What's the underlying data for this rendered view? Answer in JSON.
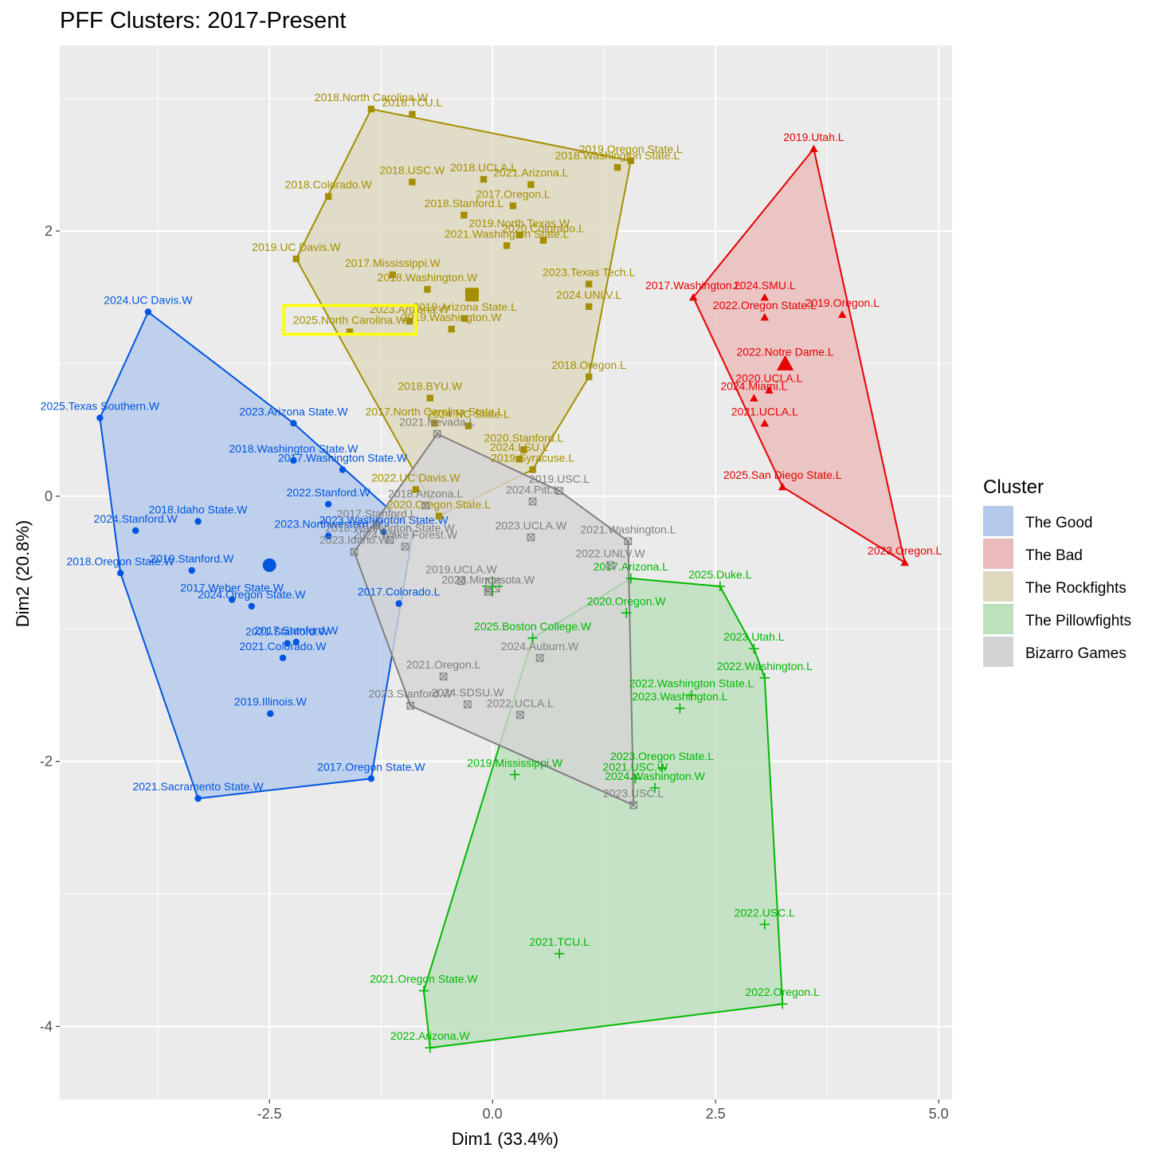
{
  "chart_data": {
    "type": "scatter",
    "title": "PFF Clusters: 2017-Present",
    "xlabel": "Dim1 (33.4%)",
    "ylabel": "Dim2 (20.8%)",
    "xlim": [
      -4.85,
      5.15
    ],
    "ylim": [
      -4.55,
      3.4
    ],
    "xticks": [
      -2.5,
      0.0,
      2.5,
      5.0
    ],
    "xtick_labels": [
      "-2.5",
      "0.0",
      "2.5",
      "5.0"
    ],
    "yticks": [
      -4,
      -2,
      0,
      2
    ],
    "ytick_labels": [
      "-4",
      "-2",
      "0",
      "2"
    ],
    "grid": true,
    "legend": {
      "title": "Cluster",
      "position": "right"
    },
    "highlight": {
      "label": "2025.North Carolina.W",
      "color": "#ffff00"
    },
    "series": [
      {
        "name": "The Good",
        "color": "#0055e0",
        "fill": "#b4c9ec",
        "shape": "circle",
        "centroid": {
          "x": -2.5,
          "y": -0.52
        },
        "hull": [
          [
            -4.4,
            0.59
          ],
          [
            -3.86,
            1.39
          ],
          [
            -2.23,
            0.55
          ],
          [
            -0.89,
            -0.26
          ],
          [
            -1.36,
            -2.13
          ],
          [
            -3.3,
            -2.28
          ],
          [
            -4.17,
            -0.58
          ]
        ],
        "points": [
          {
            "label": "2024.UC Davis.W",
            "x": -3.86,
            "y": 1.39
          },
          {
            "label": "2025.Texas Southern.W",
            "x": -4.4,
            "y": 0.59
          },
          {
            "label": "2023.Arizona State.W",
            "x": -2.23,
            "y": 0.55
          },
          {
            "label": "2017.Washington State.W",
            "x": -1.68,
            "y": 0.2
          },
          {
            "label": "2018.Washington State.W",
            "x": -2.23,
            "y": 0.27
          },
          {
            "label": "2022.Stanford.W",
            "x": -1.84,
            "y": -0.06
          },
          {
            "label": "2018.Idaho State.W",
            "x": -3.3,
            "y": -0.19
          },
          {
            "label": "2024.Stanford.W",
            "x": -4.0,
            "y": -0.26
          },
          {
            "label": "2023.Northwestern.W",
            "x": -1.84,
            "y": -0.3
          },
          {
            "label": "2023.Washington State.W",
            "x": -1.22,
            "y": -0.27
          },
          {
            "label": "2018.Oregon State.W",
            "x": -4.17,
            "y": -0.58
          },
          {
            "label": "2019.Stanford.W",
            "x": -3.37,
            "y": -0.56
          },
          {
            "label": "2024.Oregon State.W",
            "x": -2.7,
            "y": -0.83
          },
          {
            "label": "2017.Weber State.W",
            "x": -2.92,
            "y": -0.78
          },
          {
            "label": "2017.Colorado.L",
            "x": -1.05,
            "y": -0.81
          },
          {
            "label": "2017.Stanford.W",
            "x": -2.2,
            "y": -1.1
          },
          {
            "label": "2021.Stanford.W",
            "x": -2.3,
            "y": -1.11
          },
          {
            "label": "2021.Colorado.W",
            "x": -2.35,
            "y": -1.22
          },
          {
            "label": "2019.Illinois.W",
            "x": -2.49,
            "y": -1.64
          },
          {
            "label": "2017.Oregon State.W",
            "x": -1.36,
            "y": -2.13
          },
          {
            "label": "2021.Sacramento State.W",
            "x": -3.3,
            "y": -2.28
          }
        ]
      },
      {
        "name": "The Bad",
        "color": "#e60000",
        "fill": "#ebbaba",
        "shape": "triangle",
        "centroid": {
          "x": 3.28,
          "y": 1.0
        },
        "hull": [
          [
            2.25,
            1.5
          ],
          [
            3.6,
            2.62
          ],
          [
            4.62,
            -0.5
          ],
          [
            3.25,
            0.07
          ]
        ],
        "points": [
          {
            "label": "2019.Utah.L",
            "x": 3.6,
            "y": 2.62
          },
          {
            "label": "2017.Washington.L",
            "x": 2.25,
            "y": 1.5
          },
          {
            "label": "2024.SMU.L",
            "x": 3.05,
            "y": 1.5
          },
          {
            "label": "2022.Oregon State.L",
            "x": 3.05,
            "y": 1.35
          },
          {
            "label": "2019.Oregon.L",
            "x": 3.92,
            "y": 1.37
          },
          {
            "label": "2022.Notre Dame.L",
            "x": 3.28,
            "y": 1.0
          },
          {
            "label": "2020.UCLA.L",
            "x": 3.1,
            "y": 0.8
          },
          {
            "label": "2024.Miami.L",
            "x": 2.93,
            "y": 0.74
          },
          {
            "label": "2021.UCLA.L",
            "x": 3.05,
            "y": 0.55
          },
          {
            "label": "2025.San Diego State.L",
            "x": 3.25,
            "y": 0.07
          },
          {
            "label": "2023.Oregon.L",
            "x": 4.62,
            "y": -0.5
          }
        ]
      },
      {
        "name": "The Rockfights",
        "color": "#a58f00",
        "fill": "#ddd8be",
        "shape": "square",
        "centroid": {
          "x": -0.23,
          "y": 1.52
        },
        "hull": [
          [
            -1.36,
            2.92
          ],
          [
            1.55,
            2.53
          ],
          [
            1.08,
            0.9
          ],
          [
            0.45,
            0.2
          ],
          [
            -0.6,
            -0.15
          ],
          [
            -2.2,
            1.79
          ]
        ],
        "points": [
          {
            "label": "2018.North Carolina.W",
            "x": -1.36,
            "y": 2.92
          },
          {
            "label": "2018.TCU.L",
            "x": -0.9,
            "y": 2.88
          },
          {
            "label": "2019.Oregon State.L",
            "x": 1.55,
            "y": 2.53
          },
          {
            "label": "2018.Washington State.L",
            "x": 1.4,
            "y": 2.48
          },
          {
            "label": "2018.USC.W",
            "x": -0.9,
            "y": 2.37
          },
          {
            "label": "2018.UCLA.L",
            "x": -0.1,
            "y": 2.39
          },
          {
            "label": "2021.Arizona.L",
            "x": 0.43,
            "y": 2.35
          },
          {
            "label": "2018.Colorado.W",
            "x": -1.84,
            "y": 2.26
          },
          {
            "label": "2017.Oregon.L",
            "x": 0.23,
            "y": 2.19
          },
          {
            "label": "2018.Stanford.L",
            "x": -0.32,
            "y": 2.12
          },
          {
            "label": "2019.North Texas.W",
            "x": 0.3,
            "y": 1.97
          },
          {
            "label": "2020.Colorado.L",
            "x": 0.57,
            "y": 1.93
          },
          {
            "label": "2021.Washington State.L",
            "x": 0.16,
            "y": 1.89
          },
          {
            "label": "2019.UC Davis.W",
            "x": -2.2,
            "y": 1.79
          },
          {
            "label": "2017.Mississippi.W",
            "x": -1.12,
            "y": 1.67
          },
          {
            "label": "2023.Texas Tech.L",
            "x": 1.08,
            "y": 1.6
          },
          {
            "label": "2018.Washington.W",
            "x": -0.73,
            "y": 1.56
          },
          {
            "label": "2024.UNLV.L",
            "x": 1.08,
            "y": 1.43
          },
          {
            "label": "2019.Arizona State.L",
            "x": -0.31,
            "y": 1.34
          },
          {
            "label": "2023.Arizona.W",
            "x": -0.93,
            "y": 1.32
          },
          {
            "label": "2019.Washington.W",
            "x": -0.46,
            "y": 1.26
          },
          {
            "label": "2025.North Carolina.W",
            "x": -1.6,
            "y": 1.24
          },
          {
            "label": "2018.Oregon.L",
            "x": 1.08,
            "y": 0.9
          },
          {
            "label": "2018.BYU.W",
            "x": -0.7,
            "y": 0.74
          },
          {
            "label": "2017.North Carolina State.L",
            "x": -0.65,
            "y": 0.55
          },
          {
            "label": "2024.NC State.L",
            "x": -0.27,
            "y": 0.53
          },
          {
            "label": "2020.Stanford.L",
            "x": 0.35,
            "y": 0.35
          },
          {
            "label": "2024.LSU.L",
            "x": 0.3,
            "y": 0.28
          },
          {
            "label": "2019.Syracuse.L",
            "x": 0.45,
            "y": 0.2
          },
          {
            "label": "2022.UC Davis.W",
            "x": -0.86,
            "y": 0.05
          },
          {
            "label": "2020.Oregon State.L",
            "x": -0.6,
            "y": -0.15
          }
        ]
      },
      {
        "name": "The Pillowfights",
        "color": "#00b800",
        "fill": "#bde0bd",
        "shape": "plus",
        "centroid": {
          "x": 0.0,
          "y": -0.68
        },
        "hull": [
          [
            0.45,
            -1.07
          ],
          [
            1.55,
            -0.62
          ],
          [
            2.55,
            -0.68
          ],
          [
            2.93,
            -1.15
          ],
          [
            3.05,
            -1.37
          ],
          [
            3.25,
            -3.83
          ],
          [
            -0.7,
            -4.16
          ],
          [
            -0.77,
            -3.73
          ]
        ],
        "points": [
          {
            "label": "2017.Arizona.L",
            "x": 1.55,
            "y": -0.62
          },
          {
            "label": "2025.Duke.L",
            "x": 2.55,
            "y": -0.68
          },
          {
            "label": "2020.Oregon.W",
            "x": 1.5,
            "y": -0.88
          },
          {
            "label": "2025.Boston College.W",
            "x": 0.45,
            "y": -1.07
          },
          {
            "label": "2023.Utah.L",
            "x": 2.93,
            "y": -1.15
          },
          {
            "label": "2022.Washington.L",
            "x": 3.05,
            "y": -1.37
          },
          {
            "label": "2022.Washington State.L",
            "x": 2.23,
            "y": -1.5
          },
          {
            "label": "2023.Washington.L",
            "x": 2.1,
            "y": -1.6
          },
          {
            "label": "2019.Mississippi.W",
            "x": 0.25,
            "y": -2.1
          },
          {
            "label": "2023.Oregon State.L",
            "x": 1.9,
            "y": -2.05
          },
          {
            "label": "2021.USC.W",
            "x": 1.6,
            "y": -2.13
          },
          {
            "label": "2024.Washington.W",
            "x": 1.82,
            "y": -2.2
          },
          {
            "label": "2022.USC.L",
            "x": 3.05,
            "y": -3.23
          },
          {
            "label": "2021.TCU.L",
            "x": 0.75,
            "y": -3.45
          },
          {
            "label": "2021.Oregon State.W",
            "x": -0.77,
            "y": -3.73
          },
          {
            "label": "2022.Oregon.L",
            "x": 3.25,
            "y": -3.83
          },
          {
            "label": "2022.Arizona.W",
            "x": -0.7,
            "y": -4.16
          }
        ]
      },
      {
        "name": "Bizarro Games",
        "color": "#7f7f7f",
        "fill": "#d4d4d4",
        "shape": "square-x",
        "centroid": {
          "x": 0.0,
          "y": -0.67
        },
        "hull": [
          [
            -0.62,
            0.47
          ],
          [
            0.75,
            0.04
          ],
          [
            1.52,
            -0.34
          ],
          [
            1.58,
            -2.33
          ],
          [
            -0.92,
            -1.58
          ],
          [
            -1.55,
            -0.42
          ]
        ],
        "points": [
          {
            "label": "2021.Nevada.L",
            "x": -0.62,
            "y": 0.47
          },
          {
            "label": "2019.USC.L",
            "x": 0.75,
            "y": 0.04
          },
          {
            "label": "2018.Arizona.L",
            "x": -0.75,
            "y": -0.07
          },
          {
            "label": "2024.Pitt.L",
            "x": 0.45,
            "y": -0.04
          },
          {
            "label": "2023.UCLA.W",
            "x": 0.43,
            "y": -0.31
          },
          {
            "label": "2021.Washington.L",
            "x": 1.52,
            "y": -0.34
          },
          {
            "label": "2018.Washington State.W",
            "x": -1.15,
            "y": -0.33
          },
          {
            "label": "2017.Stanford.L",
            "x": -1.3,
            "y": -0.22
          },
          {
            "label": "2024.Wake Forest.W",
            "x": -0.98,
            "y": -0.38
          },
          {
            "label": "2023.Idaho.W",
            "x": -1.55,
            "y": -0.42
          },
          {
            "label": "2022.UNLV.W",
            "x": 1.32,
            "y": -0.52
          },
          {
            "label": "2019.UCLA.W",
            "x": -0.35,
            "y": -0.64
          },
          {
            "label": "2023.Minnesota.W",
            "x": -0.05,
            "y": -0.72
          },
          {
            "label": "2024.Auburn.W",
            "x": 0.53,
            "y": -1.22
          },
          {
            "label": "2021.Oregon.L",
            "x": -0.55,
            "y": -1.36
          },
          {
            "label": "2024.SDSU.W",
            "x": -0.28,
            "y": -1.57
          },
          {
            "label": "2023.Stanford.W",
            "x": -0.92,
            "y": -1.58
          },
          {
            "label": "2022.UCLA.L",
            "x": 0.31,
            "y": -1.65
          },
          {
            "label": "2023.USC.L",
            "x": 1.58,
            "y": -2.33
          }
        ]
      }
    ]
  }
}
